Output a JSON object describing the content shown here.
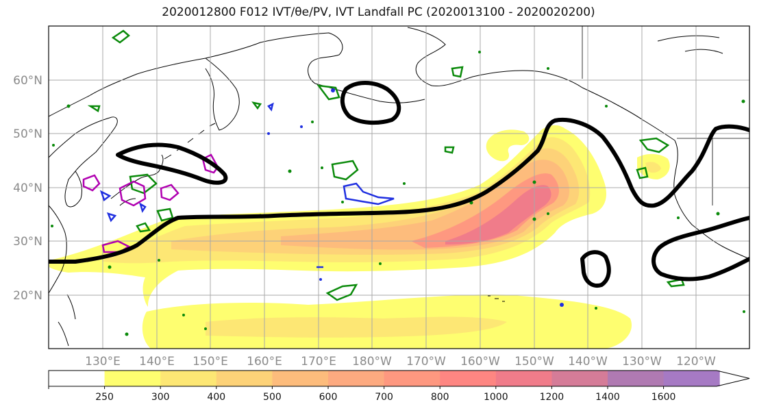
{
  "title": "2020012800 F012 IVT/θe/PV, IVT Landfall PC (2020013100 - 2020020200)",
  "map": {
    "lat_labels": [
      "20°N",
      "30°N",
      "40°N",
      "50°N",
      "60°N"
    ],
    "lon_labels": [
      "130°E",
      "140°E",
      "150°E",
      "160°E",
      "170°E",
      "180°W",
      "170°W",
      "160°W",
      "150°W",
      "140°W",
      "130°W",
      "120°W"
    ],
    "colors": {
      "land_line": "#000000",
      "grid": "#a8a8a8",
      "theta_e_contour": "#000000",
      "pv_green": "#0a8a0a",
      "pv_blue": "#1f2fe0",
      "pv_magenta": "#b000b0"
    }
  },
  "colorbar": {
    "levels": [
      "250",
      "300",
      "400",
      "500",
      "600",
      "700",
      "800",
      "1000",
      "1200",
      "1400",
      "1600"
    ],
    "colors": [
      "#ffffff",
      "#fefe70",
      "#fde774",
      "#fdd278",
      "#fdbc7c",
      "#fdaa80",
      "#fe9880",
      "#fe8682",
      "#f07c8a",
      "#d57c98",
      "#b07ab2",
      "#a67ac4"
    ]
  }
}
